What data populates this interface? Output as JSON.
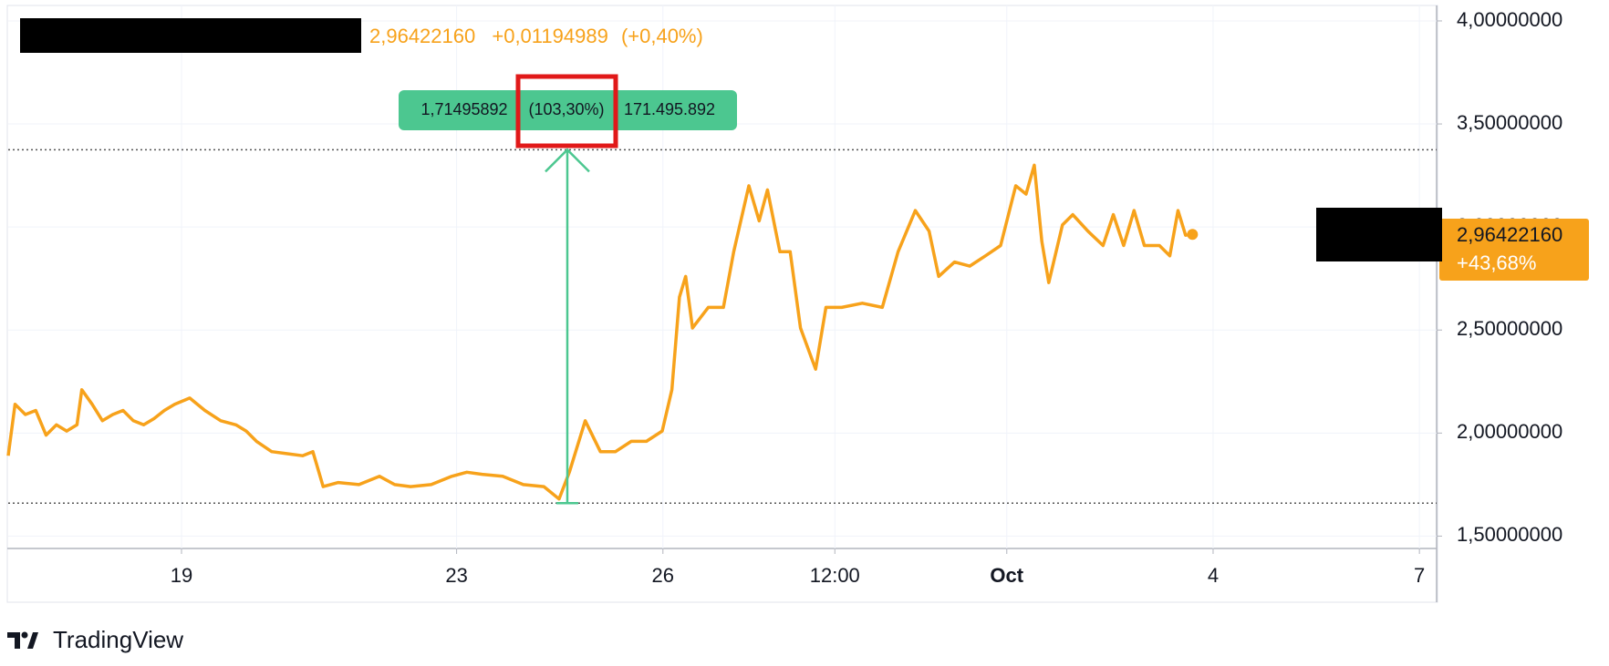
{
  "chart_data": {
    "type": "line",
    "header": {
      "price": "2,96422160",
      "change": "+0,01194989",
      "change_percent": "(+0,40%)"
    },
    "color": "#f7a21b",
    "x": [
      16.48,
      16.58,
      16.73,
      16.88,
      17.03,
      17.18,
      17.33,
      17.48,
      17.55,
      17.7,
      17.85,
      18.0,
      18.15,
      18.3,
      18.45,
      18.6,
      18.75,
      18.9,
      19.12,
      19.34,
      19.57,
      19.79,
      19.94,
      20.09,
      20.31,
      20.54,
      20.76,
      20.91,
      21.06,
      21.28,
      21.58,
      21.88,
      22.1,
      22.33,
      22.63,
      22.93,
      23.15,
      23.37,
      23.67,
      23.97,
      24.27,
      24.49,
      24.64,
      24.87,
      25.09,
      25.31,
      25.54,
      25.76,
      25.99,
      26.13,
      26.24,
      26.33,
      26.43,
      26.66,
      26.88,
      27.03,
      27.25,
      27.4,
      27.52,
      27.7,
      27.85,
      28.0,
      28.22,
      28.37,
      28.6,
      28.9,
      29.19,
      29.42,
      29.67,
      29.87,
      30.01,
      30.24,
      30.46,
      30.69,
      30.91,
      31.13,
      31.28,
      31.4,
      31.51,
      31.61,
      31.81,
      31.96,
      32.18,
      32.4,
      32.55,
      32.7,
      32.85,
      33.0,
      33.22,
      33.37,
      33.49,
      33.6,
      33.7
    ],
    "values": [
      1.89,
      2.14,
      2.09,
      2.11,
      1.99,
      2.04,
      2.01,
      2.04,
      2.21,
      2.14,
      2.06,
      2.09,
      2.11,
      2.06,
      2.04,
      2.07,
      2.11,
      2.14,
      2.17,
      2.11,
      2.06,
      2.04,
      2.01,
      1.96,
      1.91,
      1.9,
      1.89,
      1.91,
      1.74,
      1.76,
      1.75,
      1.79,
      1.75,
      1.74,
      1.75,
      1.79,
      1.81,
      1.8,
      1.79,
      1.75,
      1.74,
      1.68,
      1.81,
      2.06,
      1.91,
      1.91,
      1.96,
      1.96,
      2.01,
      2.21,
      2.66,
      2.76,
      2.51,
      2.61,
      2.61,
      2.88,
      3.2,
      3.03,
      3.18,
      2.88,
      2.88,
      2.51,
      2.31,
      2.61,
      2.61,
      2.63,
      2.61,
      2.88,
      3.08,
      2.98,
      2.76,
      2.83,
      2.81,
      2.86,
      2.91,
      3.2,
      3.16,
      3.3,
      2.93,
      2.73,
      3.01,
      3.06,
      2.98,
      2.91,
      3.06,
      2.91,
      3.08,
      2.91,
      2.91,
      2.86,
      3.08,
      2.96,
      2.9642216
    ],
    "xlim": [
      16.48,
      37.25
    ],
    "ylim": [
      1.44,
      4.075
    ],
    "xticks": [
      19,
      23,
      26,
      {
        "value": 28.5,
        "label": "12:00"
      },
      {
        "value": 31,
        "label": "Oct"
      },
      {
        "value": 34,
        "label": "4"
      },
      {
        "value": 37,
        "label": "7"
      }
    ],
    "yticks": [
      {
        "value": 1.5,
        "label": "1,50000000"
      },
      {
        "value": 2,
        "label": "2,00000000"
      },
      {
        "value": 2.5,
        "label": "2,50000000"
      },
      {
        "value": 3,
        "label": "3,00000000"
      },
      {
        "value": 3.5,
        "label": "3,50000000"
      },
      {
        "value": 4,
        "label": "4,00000000"
      }
    ],
    "grid": true,
    "last_value_labels": [
      "2,96422160",
      "+43,68%"
    ],
    "measure": {
      "low": 1.66,
      "high": 3.375,
      "x": 24.61,
      "change": "1,71495892",
      "percent": "(103,30%)",
      "volume": "171.495.892",
      "color": "#4cc790"
    },
    "logo": "TradingView"
  }
}
